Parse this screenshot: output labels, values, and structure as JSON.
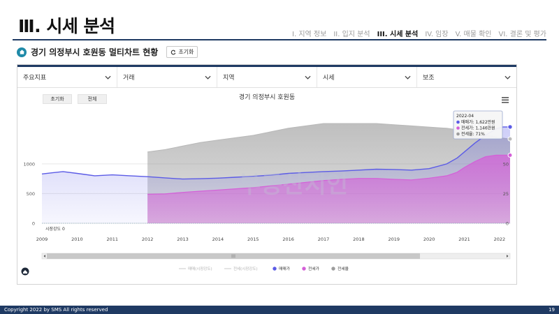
{
  "header": {
    "title": "Ⅲ. 시세 분석",
    "nav": [
      {
        "label": "I. 지역 정보",
        "active": false
      },
      {
        "label": "II. 입지 분석",
        "active": false
      },
      {
        "label": "III. 시세 분석",
        "active": true
      },
      {
        "label": "IV. 임장",
        "active": false
      },
      {
        "label": "V. 매물 확인",
        "active": false
      },
      {
        "label": "VI. 결론 및 평가",
        "active": false
      }
    ]
  },
  "subheader": {
    "title": "경기 의정부시 호원동 멀티차트 현황",
    "reset_label": "초기화"
  },
  "filters": [
    {
      "label": "주요지표"
    },
    {
      "label": "거래"
    },
    {
      "label": "지역"
    },
    {
      "label": "시세"
    },
    {
      "label": "보조"
    }
  ],
  "chart_buttons": {
    "reset": "초기화",
    "all": "전체"
  },
  "watermark": "부동산지인",
  "colors": {
    "navy": "#1f3a63",
    "sale": "#5b5be6",
    "jeonse": "#d45fd8",
    "ratio": "#c2c2c2"
  },
  "chart_data": {
    "type": "area",
    "title": "경기 의정부시 호원동",
    "x_ticks": [
      "2009",
      "2010",
      "2011",
      "2012",
      "2013",
      "2014",
      "2015",
      "2016",
      "2017",
      "2018",
      "2019",
      "2020",
      "2021",
      "2022"
    ],
    "xlim": [
      2009.0,
      2022.3
    ],
    "ylim_left": [
      0,
      1750
    ],
    "y_ticks_left": [
      0,
      500,
      1000
    ],
    "ylim_right": [
      0,
      87.5
    ],
    "y_ticks_right": [
      0,
      25,
      50
    ],
    "baseline_label": "시장강도 0",
    "series": [
      {
        "name": "매매가",
        "axis": "left",
        "x": [
          2009.0,
          2009.3,
          2009.6,
          2010.0,
          2010.5,
          2011.0,
          2011.5,
          2012.0,
          2012.5,
          2013.0,
          2013.5,
          2014.0,
          2014.5,
          2015.0,
          2015.5,
          2016.0,
          2016.5,
          2017.0,
          2017.5,
          2018.0,
          2018.5,
          2019.0,
          2019.5,
          2020.0,
          2020.5,
          2020.8,
          2021.0,
          2021.3,
          2021.6,
          2021.9,
          2022.1,
          2022.3
        ],
        "values": [
          830,
          850,
          870,
          840,
          800,
          815,
          800,
          785,
          765,
          745,
          750,
          760,
          775,
          790,
          810,
          840,
          855,
          870,
          880,
          895,
          910,
          905,
          895,
          920,
          1000,
          1100,
          1200,
          1350,
          1480,
          1590,
          1622,
          1622
        ]
      },
      {
        "name": "전세가",
        "axis": "left",
        "x": [
          2012.0,
          2012.5,
          2013.0,
          2013.5,
          2014.0,
          2014.5,
          2015.0,
          2015.5,
          2016.0,
          2016.5,
          2017.0,
          2017.5,
          2018.0,
          2018.5,
          2019.0,
          2019.5,
          2020.0,
          2020.5,
          2020.8,
          2021.0,
          2021.3,
          2021.6,
          2021.9,
          2022.1,
          2022.3
        ],
        "values": [
          490,
          495,
          520,
          540,
          560,
          580,
          600,
          630,
          660,
          690,
          720,
          740,
          755,
          755,
          740,
          730,
          760,
          800,
          860,
          940,
          1040,
          1120,
          1146,
          1146,
          1146
        ]
      },
      {
        "name": "전세율",
        "axis": "right",
        "x": [
          2012.0,
          2012.5,
          2013.0,
          2013.5,
          2014.0,
          2014.5,
          2015.0,
          2015.5,
          2016.0,
          2016.5,
          2017.0,
          2017.5,
          2018.0,
          2018.5,
          2019.0,
          2019.5,
          2020.0,
          2020.5,
          2021.0,
          2021.5,
          2022.0,
          2022.3
        ],
        "values": [
          60,
          62,
          65,
          68,
          70,
          72,
          74,
          77,
          80,
          82,
          84,
          84,
          84,
          84,
          83,
          82,
          81,
          80,
          78,
          75,
          72,
          71
        ]
      }
    ],
    "tooltip": {
      "date": "2022-04",
      "lines": [
        {
          "series": "매매가",
          "text": "매매가: 1,622만원"
        },
        {
          "series": "전세가",
          "text": "전세가: 1,146만원"
        },
        {
          "series": "전세율",
          "text": "전세율: 71%"
        }
      ]
    },
    "legend": {
      "position": "bottom",
      "items": [
        {
          "name": "매매(시장강도)",
          "type": "line",
          "muted": true
        },
        {
          "name": "전세(시장강도)",
          "type": "line",
          "muted": true
        },
        {
          "name": "매매가",
          "type": "dot",
          "color": "#5b5be6"
        },
        {
          "name": "전세가",
          "type": "dot",
          "color": "#d45fd8"
        },
        {
          "name": "전세율",
          "type": "dot",
          "color": "#9c9c9c"
        }
      ]
    }
  },
  "footer": {
    "copyright": "Copyright 2022 by SMS All rights reserved",
    "page": "19"
  }
}
